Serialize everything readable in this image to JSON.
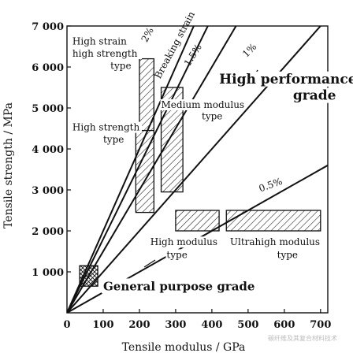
{
  "chart_data": {
    "type": "scatter",
    "title": "",
    "xlabel": "Tensile modulus / GPa",
    "ylabel": "Tensile strength / MPa",
    "xlim": [
      0,
      720
    ],
    "ylim": [
      0,
      7000
    ],
    "x_ticks": [
      "0",
      "100",
      "200",
      "300",
      "400",
      "500",
      "600",
      "700"
    ],
    "y_ticks": [
      "1 000",
      "2 000",
      "3 000",
      "4 000",
      "5 000",
      "6 000",
      "7 000"
    ],
    "grid": false,
    "strain_lines": [
      {
        "label": "2%",
        "strain": 0.02,
        "label_at": [
          230,
          6750
        ],
        "label_rotate": -62
      },
      {
        "label": "Breaking strain",
        "strain": 0.018,
        "label_at": [
          305,
          6500
        ],
        "label_rotate": -62
      },
      {
        "label": "1.5%",
        "strain": 0.015,
        "label_at": [
          355,
          6250
        ],
        "label_rotate": -58
      },
      {
        "label": "1%",
        "strain": 0.01,
        "label_at": [
          510,
          6350
        ],
        "label_rotate": -45
      },
      {
        "label": "0.5%",
        "strain": 0.005,
        "label_at": [
          565,
          3050
        ],
        "label_rotate": -20
      }
    ],
    "regions": [
      {
        "name": "High strain high strength type",
        "x": [
          200,
          240
        ],
        "y": [
          4400,
          6200
        ]
      },
      {
        "name": "High strength type",
        "x": [
          190,
          240
        ],
        "y": [
          2450,
          4450
        ]
      },
      {
        "name": "Medium modulus type",
        "x": [
          260,
          320
        ],
        "y": [
          2950,
          5500
        ]
      },
      {
        "name": "High modulus type",
        "x": [
          300,
          420
        ],
        "y": [
          2000,
          2500
        ]
      },
      {
        "name": "Ultrahigh modulus type",
        "x": [
          440,
          700
        ],
        "y": [
          2000,
          2500
        ]
      },
      {
        "name": "General purpose grade",
        "x": [
          35,
          85
        ],
        "y": [
          650,
          1150
        ],
        "style": "cross"
      }
    ],
    "annotations": [
      {
        "text": "High strain",
        "at": [
          15,
          6550
        ]
      },
      {
        "text": "high strength",
        "at": [
          15,
          6250
        ]
      },
      {
        "text": "type",
        "at": [
          120,
          5950
        ]
      },
      {
        "text": "High strength",
        "at": [
          15,
          4450
        ]
      },
      {
        "text": "type",
        "at": [
          100,
          4150
        ]
      },
      {
        "text": "Medium modulus",
        "at": [
          260,
          5000
        ]
      },
      {
        "text": "type",
        "at": [
          372,
          4720
        ]
      },
      {
        "text": "High performance",
        "at": [
          420,
          5600
        ],
        "style": "big"
      },
      {
        "text": "grade",
        "at": [
          624,
          5200
        ],
        "style": "big"
      },
      {
        "text": "High modulus",
        "at": [
          230,
          1650
        ]
      },
      {
        "text": "type",
        "at": [
          275,
          1340
        ]
      },
      {
        "text": "Ultrahigh modulus",
        "at": [
          450,
          1650
        ]
      },
      {
        "text": "type",
        "at": [
          580,
          1340
        ]
      },
      {
        "text": "General purpose grade",
        "at": [
          100,
          550
        ],
        "style": "mid"
      }
    ],
    "watermark": "碳纤维及其复合材料技术"
  }
}
